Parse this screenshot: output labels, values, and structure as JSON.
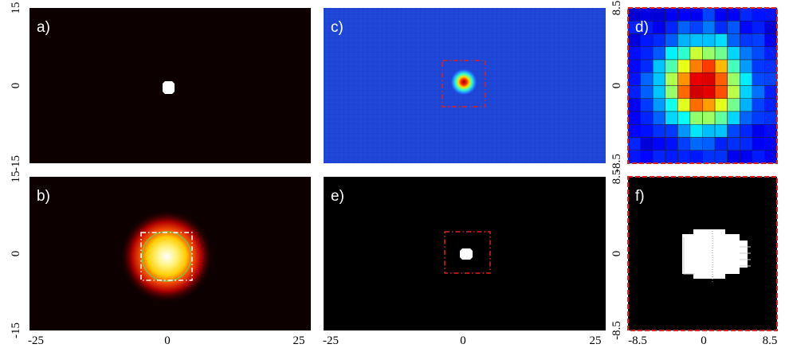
{
  "panels": [
    {
      "label": "a)"
    },
    {
      "label": "b)"
    },
    {
      "label": "c)"
    },
    {
      "label": "d)"
    },
    {
      "label": "e)"
    },
    {
      "label": "f)"
    }
  ],
  "axes": {
    "wide_y": [
      "15",
      "0",
      "-15"
    ],
    "wide_x": [
      "-25",
      "0",
      "25"
    ],
    "zoom_y": [
      "8.5",
      "0",
      "-8.5"
    ],
    "zoom_x": [
      "-8.5",
      "0",
      "8.5"
    ]
  }
}
